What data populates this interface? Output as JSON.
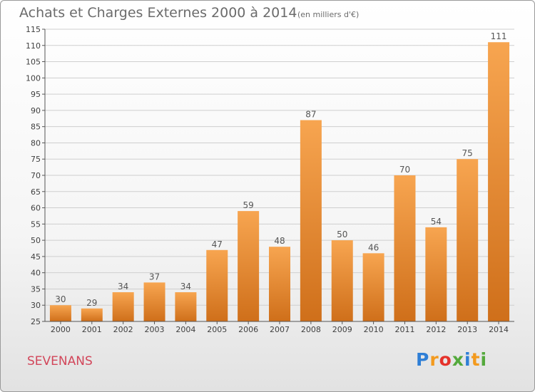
{
  "header": {
    "title": "Achats et Charges Externes 2000 à 2014",
    "subtitle": "(en milliers d'€)"
  },
  "footer": {
    "commune": "SEVENANS",
    "logo_letters": [
      {
        "ch": "P",
        "color": "#2f7fd6"
      },
      {
        "ch": "r",
        "color": "#f39a1e"
      },
      {
        "ch": "o",
        "color": "#e5322b"
      },
      {
        "ch": "x",
        "color": "#54a93c"
      },
      {
        "ch": "i",
        "color": "#2f7fd6"
      },
      {
        "ch": "t",
        "color": "#f39a1e"
      },
      {
        "ch": "i",
        "color": "#54a93c"
      }
    ]
  },
  "colors": {
    "bar_top": "#f7a550",
    "bar_bottom": "#cf6f1a",
    "grid": "#cfcfcf",
    "axis": "#555555"
  },
  "chart_data": {
    "type": "bar",
    "categories": [
      "2000",
      "2001",
      "2002",
      "2003",
      "2004",
      "2005",
      "2006",
      "2007",
      "2008",
      "2009",
      "2010",
      "2011",
      "2012",
      "2013",
      "2014"
    ],
    "values": [
      30,
      29,
      34,
      37,
      34,
      47,
      59,
      48,
      87,
      50,
      46,
      70,
      54,
      75,
      111
    ],
    "ylim": [
      25,
      115
    ],
    "yticks": [
      25,
      30,
      35,
      40,
      45,
      50,
      55,
      60,
      65,
      70,
      75,
      80,
      85,
      90,
      95,
      100,
      105,
      110,
      115
    ],
    "grid": true,
    "legend": "none",
    "data_labels": true
  }
}
